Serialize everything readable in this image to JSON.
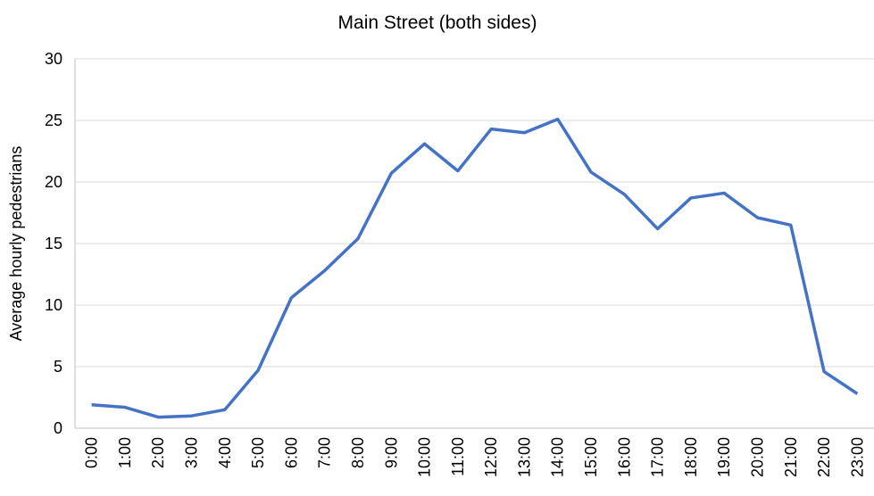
{
  "chart_data": {
    "type": "line",
    "title": "Main Street (both sides)",
    "y_label": "Average hourly pedestrians",
    "categories": [
      "0:00",
      "1:00",
      "2:00",
      "3:00",
      "4:00",
      "5:00",
      "6:00",
      "7:00",
      "8:00",
      "9:00",
      "10:00",
      "11:00",
      "12:00",
      "13:00",
      "14:00",
      "15:00",
      "16:00",
      "17:00",
      "18:00",
      "19:00",
      "20:00",
      "21:00",
      "22:00",
      "23:00"
    ],
    "values": [
      1.9,
      1.7,
      0.9,
      1.0,
      1.5,
      4.7,
      10.6,
      12.8,
      15.4,
      20.7,
      23.1,
      20.9,
      24.3,
      24.0,
      25.1,
      20.8,
      19.0,
      16.2,
      18.7,
      19.1,
      17.1,
      16.5,
      4.6,
      2.8
    ],
    "color": "#4472c4",
    "ylim": [
      0,
      30
    ],
    "yticks": [
      0,
      5,
      10,
      15,
      20,
      25,
      30
    ],
    "grid": true
  }
}
